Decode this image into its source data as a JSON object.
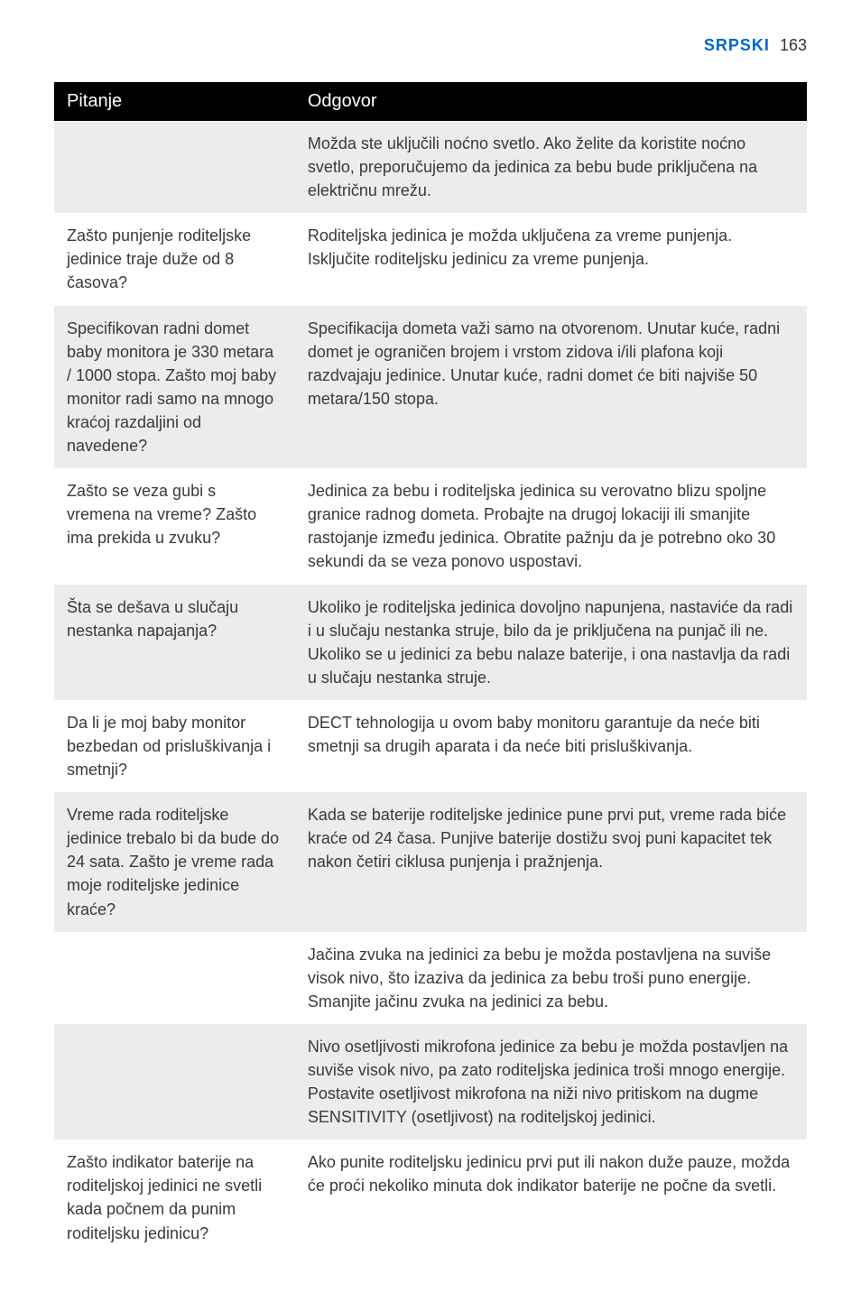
{
  "header": {
    "language": "SRPSKI",
    "page_number": "163"
  },
  "table": {
    "header": {
      "question": "Pitanje",
      "answer": "Odgovor"
    },
    "rows": [
      {
        "q": "",
        "a": "Možda ste uključili noćno svetlo. Ako želite da koristite noćno svetlo, preporučujemo da jedinica za bebu bude priključena na električnu mrežu.",
        "shade": "striped"
      },
      {
        "q": "Zašto punjenje roditeljske jedinice traje duže od 8 časova?",
        "a": "Roditeljska jedinica je možda uključena za vreme punjenja. Isključite roditeljsku jedinicu za vreme punjenja.",
        "shade": "plain"
      },
      {
        "q": "Specifikovan radni domet baby monitora je 330 metara / 1000 stopa. Zašto moj baby monitor radi samo na mnogo kraćoj razdaljini od navedene?",
        "a": "Specifikacija dometa važi samo na otvorenom. Unutar kuće, radni domet je ograničen brojem i vrstom zidova i/ili plafona koji razdvajaju jedinice. Unutar kuće, radni domet će biti najviše 50 metara/150 stopa.",
        "shade": "striped"
      },
      {
        "q": "Zašto se veza gubi s vremena na vreme? Zašto ima prekida u zvuku?",
        "a": "Jedinica za bebu i roditeljska jedinica su verovatno blizu spoljne granice radnog dometa. Probajte na drugoj lokaciji ili smanjite rastojanje između jedinica. Obratite pažnju da je potrebno oko 30 sekundi da se veza ponovo uspostavi.",
        "shade": "plain"
      },
      {
        "q": "Šta se dešava u slučaju nestanka napajanja?",
        "a": "Ukoliko je roditeljska jedinica dovoljno napunjena, nastaviće da radi i u slučaju nestanka struje, bilo da je priključena na punjač ili ne. Ukoliko se u jedinici za bebu nalaze baterije, i ona nastavlja da radi u slučaju nestanka struje.",
        "shade": "striped"
      },
      {
        "q": "Da li je moj baby monitor bezbedan od prisluškivanja i smetnji?",
        "a": "DECT tehnologija u ovom baby monitoru garantuje da neće biti smetnji sa drugih aparata i da neće biti prisluškivanja.",
        "shade": "plain"
      },
      {
        "q": "Vreme rada roditeljske jedinice trebalo bi da bude do 24 sata. Zašto je vreme rada moje roditeljske jedinice kraće?",
        "a": "Kada se baterije roditeljske jedinice pune prvi put, vreme rada biće kraće od 24 časa. Punjive baterije dostižu svoj puni kapacitet tek nakon četiri ciklusa punjenja i pražnjenja.",
        "shade": "striped"
      },
      {
        "q": "",
        "a": "Jačina zvuka na jedinici za bebu je možda postavljena na suviše visok nivo, što izaziva da jedinica za bebu troši puno energije. Smanjite jačinu zvuka na jedinici za bebu.",
        "shade": "plain"
      },
      {
        "q": "",
        "a": "Nivo osetljivosti mikrofona jedinice za bebu je možda postavljen na suviše visok nivo, pa zato roditeljska jedinica troši mnogo energije. Postavite osetljivost mikrofona na niži nivo pritiskom na dugme SENSITIVITY (osetljivost) na roditeljskoj jedinici.",
        "shade": "striped"
      },
      {
        "q": "Zašto indikator baterije na roditeljskoj jedinici ne svetli kada počnem da punim roditeljsku jedinicu?",
        "a": "Ako punite roditeljsku jedinicu prvi put ili nakon duže pauze, možda će proći nekoliko minuta dok indikator baterije ne počne da svetli.",
        "shade": "plain"
      }
    ]
  }
}
